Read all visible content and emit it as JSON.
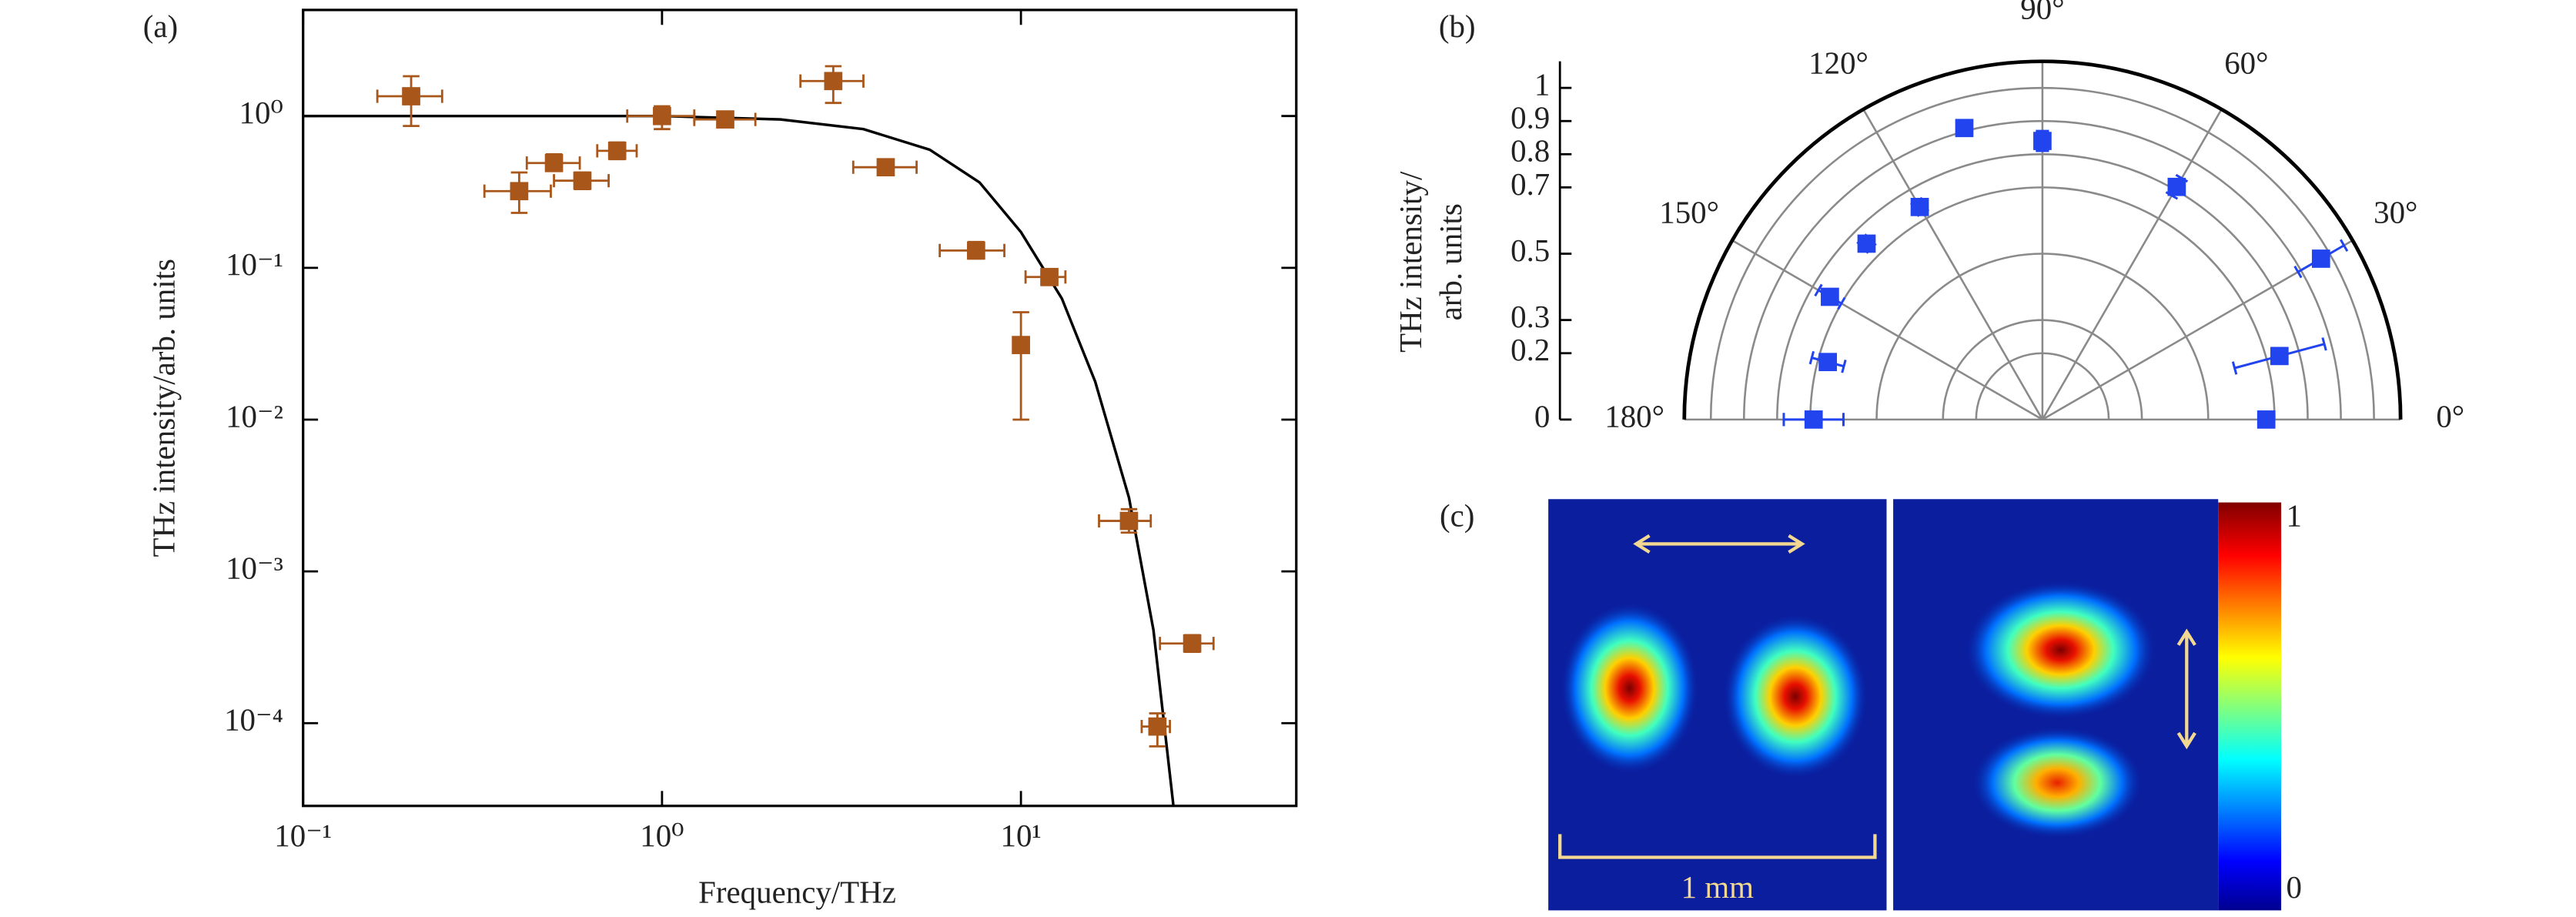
{
  "chart_data": [
    {
      "type": "scatter",
      "panel": "(a)",
      "xlabel": "Frequency/THz",
      "ylabel": "THz intensity/arb. units",
      "xscale": "log",
      "yscale": "log",
      "xlim": [
        0.1,
        58.5
      ],
      "ylim": [
        2.85e-05,
        5
      ],
      "xticks": [
        {
          "value": 0.1,
          "label": "10⁻¹"
        },
        {
          "value": 1,
          "label": "10⁰"
        },
        {
          "value": 10,
          "label": "10¹"
        }
      ],
      "yticks": [
        {
          "value": 0.0001,
          "label": "10⁻⁴"
        },
        {
          "value": 0.001,
          "label": "10⁻³"
        },
        {
          "value": 0.01,
          "label": "10⁻²"
        },
        {
          "value": 0.1,
          "label": "10⁻¹"
        },
        {
          "value": 1,
          "label": "10⁰"
        }
      ],
      "color": "#a9561a",
      "x": [
        0.2,
        0.4,
        0.5,
        0.6,
        0.75,
        1.0,
        1.5,
        3,
        4.2,
        7.5,
        12,
        10,
        20,
        30,
        24
      ],
      "y": [
        1.35,
        0.32,
        0.49,
        0.375,
        0.59,
        1.0,
        0.95,
        1.7,
        0.46,
        0.13,
        0.087,
        0.031,
        0.00215,
        0.000335,
        9.5e-05
      ],
      "x_low": [
        0.161,
        0.32,
        0.42,
        0.5,
        0.66,
        0.8,
        1.23,
        2.43,
        3.41,
        5.94,
        10.3,
        10,
        16.5,
        24.4,
        21.7
      ],
      "x_high": [
        0.244,
        0.49,
        0.59,
        0.71,
        0.85,
        1.23,
        1.82,
        3.64,
        5.12,
        8.99,
        13.3,
        10,
        23,
        34.4,
        26
      ],
      "y_low": [
        0.86,
        0.23,
        0.44,
        0.33,
        0.52,
        0.82,
        0.86,
        1.22,
        0.41,
        0.115,
        0.077,
        0.01,
        0.0018,
        0.000295,
        7.03e-05
      ],
      "y_high": [
        1.83,
        0.425,
        0.56,
        0.425,
        0.67,
        1.16,
        1.05,
        2.13,
        0.51,
        0.148,
        0.098,
        0.051,
        0.00257,
        0.00038,
        0.000116
      ],
      "fit": {
        "color": "#000000",
        "x": [
          0.1,
          1,
          2.14,
          3.64,
          5.57,
          7.67,
          10,
          13.0,
          16.1,
          20.0,
          23.4,
          26.6
        ],
        "y": [
          1,
          1,
          0.95,
          0.82,
          0.6,
          0.365,
          0.172,
          0.0628,
          0.0178,
          0.00306,
          0.00041,
          2.85e-05
        ]
      }
    },
    {
      "type": "polar",
      "panel": "(b)",
      "ylabel": [
        "THz intensity/",
        "arb. units"
      ],
      "rlim": [
        0,
        1.08
      ],
      "rticks": [
        0,
        0.2,
        0.3,
        0.5,
        0.7,
        0.8,
        0.9,
        1.0
      ],
      "thetaticks": [
        {
          "value": 0,
          "label": "0°"
        },
        {
          "value": 30,
          "label": "30°"
        },
        {
          "value": 60,
          "label": "60°"
        },
        {
          "value": 90,
          "label": "90°"
        },
        {
          "value": 120,
          "label": "120°"
        },
        {
          "value": 150,
          "label": "150°"
        },
        {
          "value": 180,
          "label": "180°"
        }
      ],
      "color": "#2244ee",
      "theta": [
        0,
        15,
        30,
        60,
        90,
        105,
        120,
        135,
        150,
        165,
        180
      ],
      "r": [
        0.675,
        0.74,
        0.97,
        0.81,
        0.84,
        0.91,
        0.74,
        0.75,
        0.74,
        0.67,
        0.69
      ],
      "r_err": [
        0.02,
        0.14,
        0.08,
        0.03,
        0.03,
        0.02,
        0.02,
        0.02,
        0.04,
        0.05,
        0.09
      ]
    }
  ],
  "panel_c": {
    "label": "(c)",
    "scale_label": "1 mm",
    "colorbar_ticks": [
      0,
      1
    ]
  }
}
